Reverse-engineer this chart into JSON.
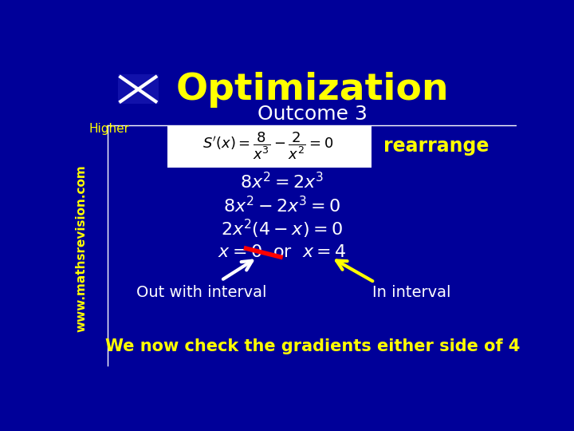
{
  "bg_color": "#000099",
  "title": "Optimization",
  "title_color": "#FFFF00",
  "title_fontsize": 34,
  "outcome_text": "Outcome 3",
  "outcome_color": "#FFFFFF",
  "outcome_fontsize": 18,
  "higher_text": "Higher",
  "higher_color": "#FFFF00",
  "website_text": "www.mathsrevision.com",
  "website_color": "#FFFF00",
  "rearrange_text": "rearrange",
  "rearrange_color": "#FFFF00",
  "content_color": "#FFFFFF",
  "out_text": "Out with interval",
  "in_text": "In interval",
  "bottom_text": "We now check the gradients either side of 4",
  "bottom_color": "#FFFF00",
  "line_color": "#FFFFFF",
  "formula_bg": "#FFFFFF",
  "formula_text_color": "#000000",
  "red_strike_color": "#FF0000",
  "arrow_white": "#FFFFFF",
  "arrow_yellow": "#FFFF00"
}
